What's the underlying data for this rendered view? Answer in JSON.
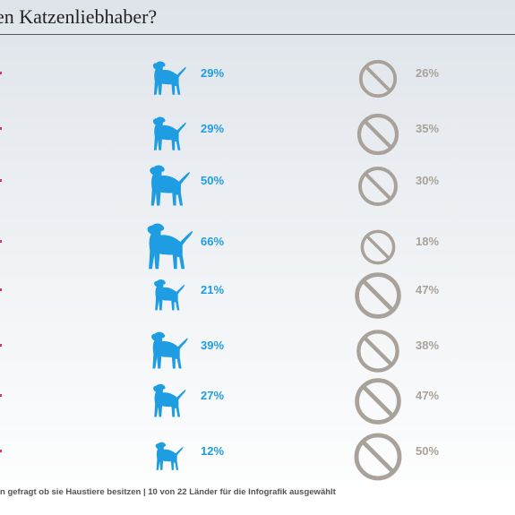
{
  "title": "en Katzenliebhaber?",
  "footnote": "n gefragt ob sie Haustiere besitzen | 10 von 22 Länder für die Infografik ausgewählt",
  "colors": {
    "dog": "#1e9de2",
    "no_pet": "#a9a29a",
    "accent_left": "#e0306a",
    "rule": "#555555"
  },
  "icons": {
    "dog": "dog-icon",
    "no_pet": "prohibited-icon"
  },
  "chart_data": {
    "type": "table",
    "columns": [
      "dog",
      "no_pet"
    ],
    "rows": [
      {
        "dog": 29,
        "no_pet": 26
      },
      {
        "dog": 29,
        "no_pet": 35
      },
      {
        "dog": 50,
        "no_pet": 30
      },
      {
        "dog": 66,
        "no_pet": 18
      },
      {
        "dog": 21,
        "no_pet": 47
      },
      {
        "dog": 39,
        "no_pet": 38
      },
      {
        "dog": 27,
        "no_pet": 47
      },
      {
        "dog": 12,
        "no_pet": 50
      }
    ],
    "dog_labels": [
      "29%",
      "29%",
      "50%",
      "66%",
      "21%",
      "39%",
      "27%",
      "12%"
    ],
    "no_pet_labels": [
      "26%",
      "35%",
      "30%",
      "18%",
      "47%",
      "38%",
      "47%",
      "50%"
    ]
  }
}
